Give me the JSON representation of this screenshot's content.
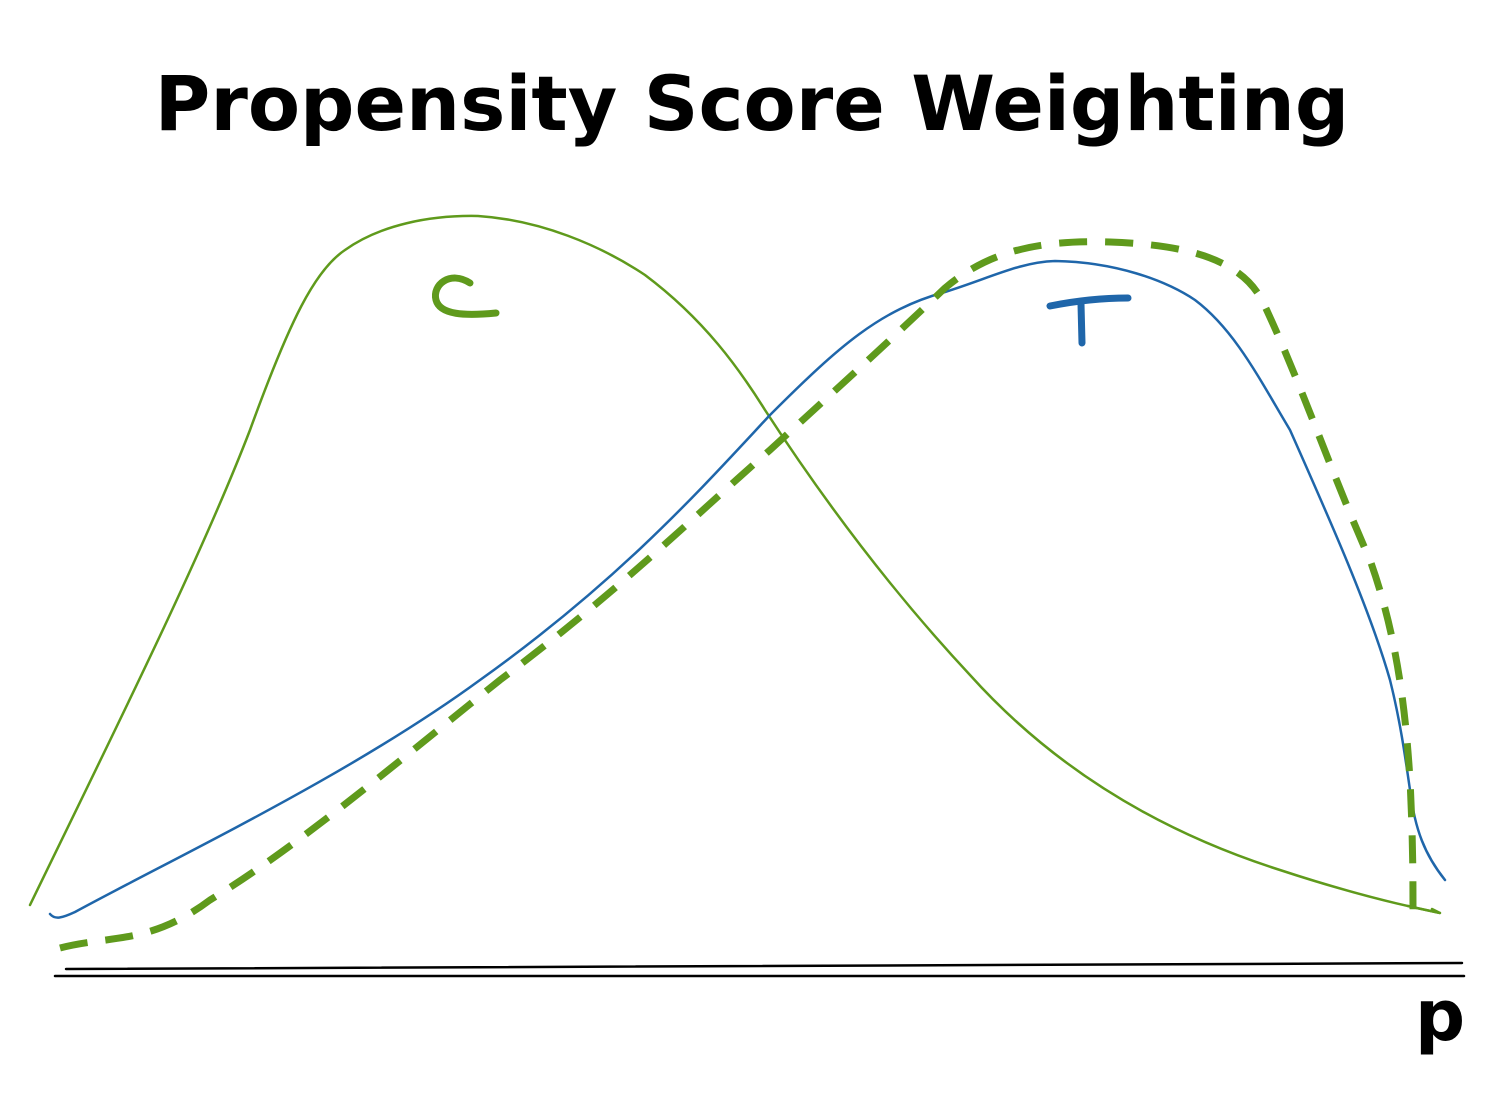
{
  "title": "Propensity Score Weighting",
  "labels": {
    "control": "C",
    "treated": "T",
    "x_axis": "p"
  },
  "colors": {
    "control": "#5f9a1c",
    "treated": "#1f66aa",
    "weighted_control": "#5f9a1c",
    "ink": "#000000",
    "background": "#ffffff"
  },
  "chart_data": {
    "type": "line",
    "title": "Propensity Score Weighting",
    "xlabel": "p",
    "ylabel": "",
    "series": [
      {
        "name": "C",
        "style": "solid",
        "color": "green"
      },
      {
        "name": "T",
        "style": "solid",
        "color": "blue"
      },
      {
        "name": "",
        "style": "dashed",
        "color": "green"
      }
    ]
  }
}
